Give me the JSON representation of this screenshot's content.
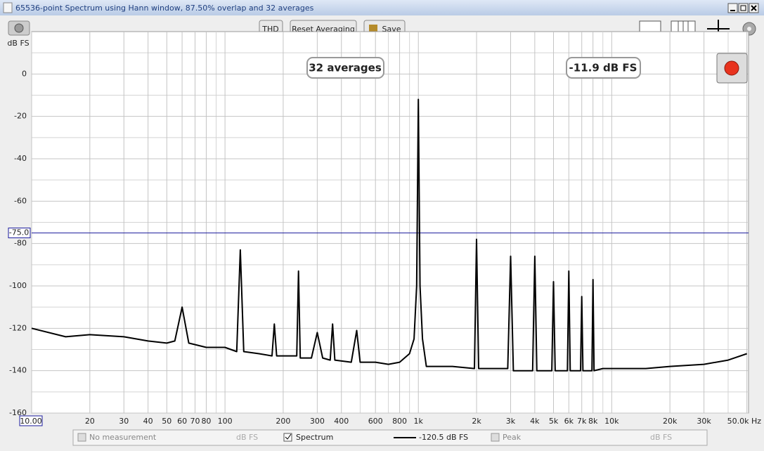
{
  "window": {
    "title": "65536-point Spectrum using Hann window, 87.50% overlap and 32 averages",
    "buttons": [
      "THD",
      "Reset Averaging",
      "Save"
    ],
    "overlays": {
      "averages": "32 averages",
      "level": "-11.9 dB FS"
    },
    "legend": {
      "no_measurement": "No measurement",
      "no_measurement_unit": "dB FS",
      "spectrum_reading": "-120.5 dB FS",
      "peak": "Peak",
      "peak_unit": "dB FS"
    }
  },
  "chart_data": {
    "type": "line",
    "y_label": "dB FS",
    "log_x": true,
    "grid": true,
    "xlim": [
      10,
      51000
    ],
    "ylim": [
      -160,
      20
    ],
    "xticks": [
      {
        "value": 10,
        "label": "10.00"
      },
      20,
      30,
      40,
      50,
      60,
      70,
      80,
      100,
      200,
      300,
      400,
      600,
      800,
      {
        "value": 1000,
        "label": "1k"
      },
      {
        "value": 2000,
        "label": "2k"
      },
      {
        "value": 3000,
        "label": "3k"
      },
      {
        "value": 4000,
        "label": "4k"
      },
      {
        "value": 5000,
        "label": "5k"
      },
      {
        "value": 6000,
        "label": "6k"
      },
      {
        "value": 7000,
        "label": "7k"
      },
      {
        "value": 8000,
        "label": "8k"
      },
      {
        "value": 10000,
        "label": "10k"
      },
      {
        "value": 20000,
        "label": "20k"
      },
      {
        "value": 30000,
        "label": "30k"
      },
      {
        "value": 50000,
        "label": "50.0k Hz"
      }
    ],
    "xminor_ticks": [
      90,
      500,
      700,
      900,
      9000,
      40000
    ],
    "yticks": [
      0,
      -20,
      -40,
      -60,
      -80,
      -100,
      -120,
      -140,
      -160
    ],
    "yminor_ticks": [
      10,
      -10,
      -30,
      -50,
      -70,
      -90,
      -110,
      -130,
      -150
    ],
    "cursor": {
      "value": -75,
      "label": "-75.0",
      "color": "#1a1a9c"
    },
    "x": [
      10,
      15,
      20,
      30,
      40,
      50,
      55,
      60,
      65,
      80,
      100,
      115,
      120,
      125,
      150,
      175,
      180,
      185,
      220,
      235,
      240,
      245,
      280,
      300,
      320,
      350,
      360,
      370,
      450,
      480,
      500,
      600,
      700,
      800,
      900,
      950,
      980,
      1000,
      1020,
      1050,
      1100,
      1500,
      1950,
      2000,
      2050,
      2900,
      3000,
      3100,
      3900,
      4000,
      4100,
      4900,
      5000,
      5100,
      5900,
      6000,
      6100,
      6900,
      7000,
      7100,
      7900,
      8000,
      8100,
      9000,
      10000,
      11000,
      12000,
      15000,
      20000,
      30000,
      40000,
      50000
    ],
    "series": [
      {
        "name": "Spectrum",
        "color": "#000000",
        "values": [
          -120,
          -124,
          -123,
          -124,
          -126,
          -127,
          -126,
          -110,
          -127,
          -129,
          -129,
          -131,
          -83,
          -131,
          -132,
          -133,
          -118,
          -133,
          -133,
          -133,
          -93,
          -134,
          -134,
          -122,
          -134,
          -135,
          -118,
          -135,
          -136,
          -121,
          -136,
          -136,
          -137,
          -136,
          -132,
          -125,
          -100,
          -12,
          -100,
          -125,
          -138,
          -138,
          -139,
          -78,
          -139,
          -139,
          -86,
          -140,
          -140,
          -86,
          -140,
          -140,
          -98,
          -140,
          -140,
          -93,
          -140,
          -140,
          -105,
          -140,
          -140,
          -97,
          -140,
          -139,
          -139,
          -139,
          -139,
          -139,
          -138,
          -137,
          -135,
          -132
        ]
      }
    ]
  }
}
